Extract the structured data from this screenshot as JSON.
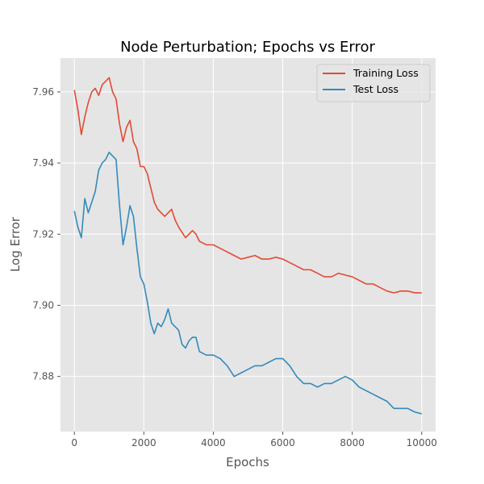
{
  "chart_data": {
    "type": "line",
    "title": "Node Perturbation; Epochs vs Error",
    "xlabel": "Epochs",
    "ylabel": "Log Error",
    "xlim": [
      -400,
      10400
    ],
    "ylim": [
      7.8645,
      7.9695
    ],
    "x_ticks": [
      0,
      2000,
      4000,
      6000,
      8000,
      10000
    ],
    "y_ticks": [
      7.88,
      7.9,
      7.92,
      7.94,
      7.96
    ],
    "x_tick_labels": [
      "0",
      "2000",
      "4000",
      "6000",
      "8000",
      "10000"
    ],
    "y_tick_labels": [
      "7.88",
      "7.90",
      "7.92",
      "7.94",
      "7.96"
    ],
    "grid": true,
    "legend_position": "top-right",
    "series": [
      {
        "name": "Training Loss",
        "color": "#E24A33",
        "points": [
          [
            0,
            7.9605
          ],
          [
            100,
            7.955
          ],
          [
            200,
            7.948
          ],
          [
            300,
            7.953
          ],
          [
            400,
            7.957
          ],
          [
            500,
            7.96
          ],
          [
            600,
            7.961
          ],
          [
            700,
            7.959
          ],
          [
            800,
            7.962
          ],
          [
            900,
            7.963
          ],
          [
            1000,
            7.964
          ],
          [
            1100,
            7.96
          ],
          [
            1200,
            7.958
          ],
          [
            1300,
            7.951
          ],
          [
            1400,
            7.946
          ],
          [
            1500,
            7.95
          ],
          [
            1600,
            7.952
          ],
          [
            1700,
            7.946
          ],
          [
            1800,
            7.944
          ],
          [
            1900,
            7.939
          ],
          [
            2000,
            7.939
          ],
          [
            2100,
            7.937
          ],
          [
            2200,
            7.933
          ],
          [
            2300,
            7.929
          ],
          [
            2400,
            7.927
          ],
          [
            2500,
            7.926
          ],
          [
            2600,
            7.925
          ],
          [
            2700,
            7.926
          ],
          [
            2800,
            7.927
          ],
          [
            2900,
            7.924
          ],
          [
            3000,
            7.922
          ],
          [
            3200,
            7.919
          ],
          [
            3400,
            7.921
          ],
          [
            3500,
            7.92
          ],
          [
            3600,
            7.918
          ],
          [
            3800,
            7.917
          ],
          [
            4000,
            7.917
          ],
          [
            4200,
            7.916
          ],
          [
            4400,
            7.915
          ],
          [
            4600,
            7.914
          ],
          [
            4800,
            7.913
          ],
          [
            5000,
            7.9135
          ],
          [
            5200,
            7.914
          ],
          [
            5400,
            7.913
          ],
          [
            5600,
            7.913
          ],
          [
            5800,
            7.9135
          ],
          [
            6000,
            7.913
          ],
          [
            6200,
            7.912
          ],
          [
            6400,
            7.911
          ],
          [
            6600,
            7.91
          ],
          [
            6800,
            7.91
          ],
          [
            7000,
            7.909
          ],
          [
            7200,
            7.908
          ],
          [
            7400,
            7.908
          ],
          [
            7600,
            7.909
          ],
          [
            7800,
            7.9085
          ],
          [
            8000,
            7.908
          ],
          [
            8200,
            7.907
          ],
          [
            8400,
            7.906
          ],
          [
            8600,
            7.906
          ],
          [
            8800,
            7.905
          ],
          [
            9000,
            7.904
          ],
          [
            9200,
            7.9035
          ],
          [
            9400,
            7.904
          ],
          [
            9600,
            7.904
          ],
          [
            9800,
            7.9035
          ],
          [
            10000,
            7.9035
          ]
        ]
      },
      {
        "name": "Test Loss",
        "color": "#348ABD",
        "points": [
          [
            0,
            7.9265
          ],
          [
            100,
            7.922
          ],
          [
            200,
            7.919
          ],
          [
            300,
            7.93
          ],
          [
            400,
            7.926
          ],
          [
            500,
            7.929
          ],
          [
            600,
            7.932
          ],
          [
            700,
            7.938
          ],
          [
            800,
            7.94
          ],
          [
            900,
            7.941
          ],
          [
            1000,
            7.943
          ],
          [
            1100,
            7.942
          ],
          [
            1200,
            7.941
          ],
          [
            1300,
            7.928
          ],
          [
            1400,
            7.917
          ],
          [
            1500,
            7.922
          ],
          [
            1600,
            7.928
          ],
          [
            1700,
            7.925
          ],
          [
            1800,
            7.916
          ],
          [
            1900,
            7.908
          ],
          [
            2000,
            7.906
          ],
          [
            2100,
            7.901
          ],
          [
            2200,
            7.895
          ],
          [
            2300,
            7.892
          ],
          [
            2400,
            7.895
          ],
          [
            2500,
            7.894
          ],
          [
            2600,
            7.896
          ],
          [
            2700,
            7.899
          ],
          [
            2800,
            7.895
          ],
          [
            2900,
            7.894
          ],
          [
            3000,
            7.893
          ],
          [
            3100,
            7.889
          ],
          [
            3200,
            7.888
          ],
          [
            3300,
            7.89
          ],
          [
            3400,
            7.891
          ],
          [
            3500,
            7.891
          ],
          [
            3600,
            7.887
          ],
          [
            3800,
            7.886
          ],
          [
            4000,
            7.886
          ],
          [
            4200,
            7.885
          ],
          [
            4400,
            7.883
          ],
          [
            4600,
            7.88
          ],
          [
            4800,
            7.881
          ],
          [
            5000,
            7.882
          ],
          [
            5200,
            7.883
          ],
          [
            5400,
            7.883
          ],
          [
            5600,
            7.884
          ],
          [
            5800,
            7.885
          ],
          [
            6000,
            7.885
          ],
          [
            6200,
            7.883
          ],
          [
            6400,
            7.88
          ],
          [
            6600,
            7.878
          ],
          [
            6800,
            7.878
          ],
          [
            7000,
            7.877
          ],
          [
            7200,
            7.878
          ],
          [
            7400,
            7.878
          ],
          [
            7600,
            7.879
          ],
          [
            7800,
            7.88
          ],
          [
            8000,
            7.879
          ],
          [
            8200,
            7.877
          ],
          [
            8400,
            7.876
          ],
          [
            8600,
            7.875
          ],
          [
            8800,
            7.874
          ],
          [
            9000,
            7.873
          ],
          [
            9200,
            7.871
          ],
          [
            9400,
            7.871
          ],
          [
            9600,
            7.871
          ],
          [
            9800,
            7.87
          ],
          [
            10000,
            7.8695
          ]
        ]
      }
    ]
  }
}
